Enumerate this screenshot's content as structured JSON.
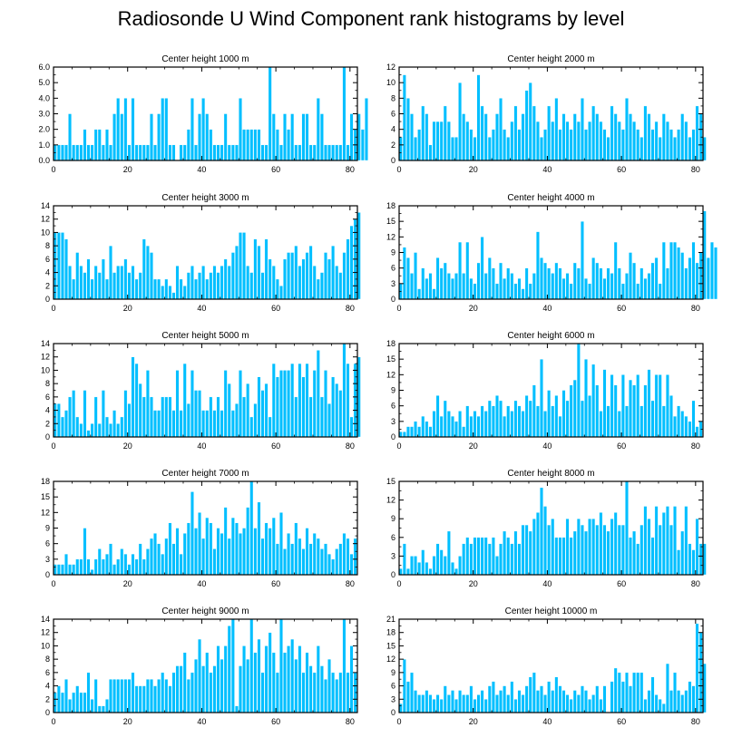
{
  "title": "Radiosonde U Wind Component rank histograms by level",
  "colors": {
    "bar": "#00bfff",
    "bar_edge": "#ffffff",
    "axis": "#000000"
  },
  "chart_data": [
    {
      "type": "bar",
      "title": "Center height 1000 m",
      "xlim": [
        0,
        82
      ],
      "ylim": [
        0,
        6
      ],
      "xticks": [
        0,
        20,
        40,
        60,
        80
      ],
      "xtick_labels": [
        "0",
        "20",
        "40",
        "60",
        "80"
      ],
      "yticks": [
        0,
        1,
        2,
        3,
        4,
        5,
        6
      ],
      "ytick_labels": [
        "0.0",
        "1.0",
        "2.0",
        "3.0",
        "4.0",
        "5.0",
        "6.0"
      ],
      "values": [
        1,
        1,
        1,
        1,
        3,
        1,
        1,
        1,
        2,
        1,
        1,
        2,
        2,
        1,
        2,
        1,
        3,
        4,
        3,
        4,
        1,
        4,
        1,
        1,
        1,
        1,
        3,
        1,
        3,
        4,
        4,
        1,
        1,
        0,
        1,
        1,
        2,
        4,
        1,
        3,
        4,
        3,
        2,
        1,
        1,
        1,
        3,
        1,
        1,
        1,
        4,
        2,
        2,
        2,
        2,
        2,
        1,
        1,
        6,
        3,
        2,
        1,
        3,
        2,
        3,
        1,
        1,
        3,
        3,
        1,
        1,
        4,
        3,
        1,
        1,
        1,
        1,
        1,
        6,
        1,
        3,
        2,
        3,
        2,
        4
      ]
    },
    {
      "type": "bar",
      "title": "Center height 2000 m",
      "xlim": [
        0,
        82
      ],
      "ylim": [
        0,
        12
      ],
      "xticks": [
        0,
        20,
        40,
        60,
        80
      ],
      "xtick_labels": [
        "0",
        "20",
        "40",
        "60",
        "80"
      ],
      "yticks": [
        0,
        2,
        4,
        6,
        8,
        10,
        12
      ],
      "ytick_labels": [
        "0",
        "2",
        "4",
        "6",
        "8",
        "10",
        "12"
      ],
      "values": [
        3,
        11,
        8,
        6,
        3,
        4,
        7,
        6,
        2,
        5,
        5,
        5,
        7,
        5,
        3,
        3,
        10,
        6,
        5,
        4,
        3,
        11,
        7,
        6,
        3,
        4,
        6,
        8,
        4,
        3,
        5,
        7,
        4,
        6,
        9,
        10,
        7,
        5,
        3,
        4,
        7,
        5,
        8,
        4,
        6,
        5,
        4,
        6,
        5,
        8,
        4,
        5,
        7,
        6,
        5,
        4,
        3,
        7,
        6,
        5,
        4,
        8,
        6,
        5,
        4,
        3,
        7,
        6,
        4,
        5,
        3,
        6,
        5,
        4,
        3,
        4,
        6,
        5,
        3,
        4,
        7,
        6,
        3
      ]
    },
    {
      "type": "bar",
      "title": "Center height 3000 m",
      "xlim": [
        0,
        82
      ],
      "ylim": [
        0,
        14
      ],
      "xticks": [
        0,
        20,
        40,
        60,
        80
      ],
      "xtick_labels": [
        "0",
        "20",
        "40",
        "60",
        "80"
      ],
      "yticks": [
        0,
        2,
        4,
        6,
        8,
        10,
        12,
        14
      ],
      "ytick_labels": [
        "0",
        "2",
        "4",
        "6",
        "8",
        "10",
        "12",
        "14"
      ],
      "values": [
        10,
        10,
        10,
        9,
        5,
        3,
        7,
        5,
        4,
        6,
        3,
        5,
        4,
        6,
        3,
        8,
        4,
        5,
        5,
        6,
        4,
        5,
        3,
        4,
        9,
        8,
        7,
        3,
        3,
        2,
        3,
        2,
        1,
        5,
        3,
        2,
        4,
        5,
        3,
        4,
        5,
        3,
        4,
        5,
        4,
        5,
        6,
        5,
        7,
        8,
        10,
        10,
        5,
        4,
        9,
        8,
        4,
        9,
        6,
        5,
        3,
        2,
        6,
        7,
        7,
        8,
        5,
        6,
        7,
        8,
        5,
        3,
        4,
        7,
        6,
        8,
        5,
        4,
        7,
        9,
        11,
        12,
        13
      ]
    },
    {
      "type": "bar",
      "title": "Center height 4000 m",
      "xlim": [
        0,
        82
      ],
      "ylim": [
        0,
        18
      ],
      "xticks": [
        0,
        20,
        40,
        60,
        80
      ],
      "xtick_labels": [
        "0",
        "20",
        "40",
        "60",
        "80"
      ],
      "yticks": [
        0,
        3,
        6,
        9,
        12,
        15,
        18
      ],
      "ytick_labels": [
        "0",
        "3",
        "6",
        "9",
        "12",
        "15",
        "18"
      ],
      "values": [
        3,
        10,
        8,
        5,
        9,
        2,
        6,
        4,
        5,
        2,
        8,
        6,
        7,
        5,
        4,
        5,
        11,
        5,
        11,
        4,
        3,
        7,
        12,
        5,
        8,
        6,
        3,
        7,
        4,
        6,
        5,
        3,
        4,
        2,
        6,
        3,
        5,
        13,
        8,
        7,
        6,
        5,
        7,
        6,
        4,
        5,
        3,
        7,
        6,
        15,
        4,
        3,
        8,
        7,
        6,
        4,
        6,
        5,
        11,
        6,
        3,
        5,
        9,
        7,
        3,
        6,
        4,
        5,
        7,
        8,
        3,
        11,
        6,
        11,
        11,
        10,
        9,
        6,
        8,
        11,
        7,
        9,
        17,
        8,
        11,
        10
      ]
    },
    {
      "type": "bar",
      "title": "Center height 5000 m",
      "xlim": [
        0,
        82
      ],
      "ylim": [
        0,
        14
      ],
      "xticks": [
        0,
        20,
        40,
        60,
        80
      ],
      "xtick_labels": [
        "0",
        "20",
        "40",
        "60",
        "80"
      ],
      "yticks": [
        0,
        2,
        4,
        6,
        8,
        10,
        12,
        14
      ],
      "ytick_labels": [
        "0",
        "2",
        "4",
        "6",
        "8",
        "10",
        "12",
        "14"
      ],
      "values": [
        5,
        5,
        3,
        4,
        6,
        7,
        3,
        2,
        7,
        1,
        2,
        6,
        2,
        7,
        3,
        2,
        4,
        2,
        3,
        7,
        5,
        12,
        11,
        8,
        6,
        10,
        6,
        4,
        4,
        6,
        6,
        6,
        4,
        10,
        4,
        11,
        5,
        10,
        7,
        7,
        4,
        4,
        6,
        4,
        6,
        4,
        10,
        8,
        4,
        5,
        10,
        6,
        8,
        3,
        5,
        9,
        7,
        8,
        3,
        11,
        9,
        10,
        10,
        10,
        11,
        6,
        11,
        9,
        11,
        6,
        10,
        13,
        6,
        10,
        5,
        9,
        8,
        7,
        14,
        11,
        3,
        11,
        12
      ]
    },
    {
      "type": "bar",
      "title": "Center height 6000 m",
      "xlim": [
        0,
        82
      ],
      "ylim": [
        0,
        18
      ],
      "xticks": [
        0,
        20,
        40,
        60,
        80
      ],
      "xtick_labels": [
        "0",
        "20",
        "40",
        "60",
        "80"
      ],
      "yticks": [
        0,
        3,
        6,
        9,
        12,
        15,
        18
      ],
      "ytick_labels": [
        "0",
        "3",
        "6",
        "9",
        "12",
        "15",
        "18"
      ],
      "values": [
        1,
        1,
        2,
        2,
        3,
        2,
        4,
        3,
        2,
        5,
        8,
        4,
        7,
        5,
        4,
        3,
        5,
        2,
        6,
        4,
        5,
        4,
        6,
        5,
        7,
        6,
        8,
        7,
        4,
        6,
        5,
        7,
        6,
        5,
        8,
        7,
        10,
        6,
        15,
        5,
        9,
        6,
        8,
        4,
        9,
        7,
        10,
        11,
        18,
        7,
        15,
        8,
        14,
        10,
        5,
        13,
        6,
        12,
        10,
        5,
        12,
        6,
        11,
        10,
        12,
        6,
        10,
        13,
        7,
        12,
        12,
        6,
        12,
        8,
        4,
        6,
        5,
        4,
        3,
        7,
        2,
        3
      ]
    },
    {
      "type": "bar",
      "title": "Center height 7000 m",
      "xlim": [
        0,
        82
      ],
      "ylim": [
        0,
        18
      ],
      "xticks": [
        0,
        20,
        40,
        60,
        80
      ],
      "xtick_labels": [
        "0",
        "20",
        "40",
        "60",
        "80"
      ],
      "yticks": [
        0,
        3,
        6,
        9,
        12,
        15,
        18
      ],
      "ytick_labels": [
        "0",
        "3",
        "6",
        "9",
        "12",
        "15",
        "18"
      ],
      "values": [
        2,
        2,
        2,
        4,
        2,
        2,
        3,
        3,
        9,
        3,
        1,
        3,
        5,
        3,
        4,
        6,
        2,
        3,
        5,
        4,
        2,
        4,
        3,
        6,
        3,
        5,
        7,
        8,
        6,
        4,
        7,
        10,
        6,
        9,
        4,
        8,
        10,
        16,
        9,
        12,
        7,
        11,
        10,
        5,
        9,
        8,
        13,
        7,
        11,
        10,
        8,
        9,
        13,
        18,
        9,
        14,
        7,
        10,
        9,
        11,
        6,
        12,
        5,
        8,
        6,
        10,
        7,
        5,
        9,
        6,
        8,
        7,
        5,
        6,
        4,
        3,
        5,
        6,
        8,
        7,
        4,
        7
      ]
    },
    {
      "type": "bar",
      "title": "Center height 8000 m",
      "xlim": [
        0,
        82
      ],
      "ylim": [
        0,
        15
      ],
      "xticks": [
        0,
        20,
        40,
        60,
        80
      ],
      "xtick_labels": [
        "0",
        "20",
        "40",
        "60",
        "80"
      ],
      "yticks": [
        0,
        3,
        6,
        9,
        12,
        15
      ],
      "ytick_labels": [
        "0",
        "3",
        "6",
        "9",
        "12",
        "15"
      ],
      "values": [
        1,
        5,
        1,
        3,
        3,
        2,
        4,
        2,
        1,
        3,
        5,
        4,
        3,
        7,
        2,
        1,
        3,
        5,
        6,
        5,
        6,
        6,
        6,
        6,
        5,
        6,
        3,
        5,
        7,
        6,
        5,
        7,
        5,
        8,
        8,
        7,
        9,
        10,
        14,
        11,
        8,
        9,
        6,
        6,
        6,
        9,
        6,
        7,
        9,
        8,
        7,
        9,
        9,
        8,
        10,
        8,
        7,
        9,
        10,
        8,
        8,
        15,
        6,
        7,
        5,
        8,
        11,
        9,
        6,
        11,
        8,
        10,
        11,
        8,
        11,
        4,
        7,
        11,
        5,
        4,
        9,
        5,
        5
      ]
    },
    {
      "type": "bar",
      "title": "Center height 9000 m",
      "xlim": [
        0,
        82
      ],
      "ylim": [
        0,
        14
      ],
      "xticks": [
        0,
        20,
        40,
        60,
        80
      ],
      "xtick_labels": [
        "0",
        "20",
        "40",
        "60",
        "80"
      ],
      "yticks": [
        0,
        2,
        4,
        6,
        8,
        10,
        12,
        14
      ],
      "ytick_labels": [
        "0",
        "2",
        "4",
        "6",
        "8",
        "10",
        "12",
        "14"
      ],
      "values": [
        3,
        4,
        3,
        5,
        2,
        3,
        4,
        3,
        3,
        6,
        2,
        5,
        1,
        1,
        2,
        5,
        5,
        5,
        5,
        5,
        5,
        6,
        4,
        4,
        4,
        5,
        5,
        4,
        5,
        6,
        5,
        4,
        6,
        7,
        7,
        9,
        5,
        6,
        8,
        11,
        7,
        9,
        6,
        7,
        10,
        8,
        10,
        13,
        14,
        1,
        7,
        10,
        8,
        14,
        9,
        11,
        6,
        10,
        12,
        9,
        6,
        14,
        9,
        10,
        11,
        8,
        10,
        6,
        9,
        7,
        6,
        10,
        7,
        5,
        8,
        6,
        5,
        6,
        14,
        6,
        10,
        6
      ]
    },
    {
      "type": "bar",
      "title": "Center height 10000 m",
      "xlim": [
        0,
        82
      ],
      "ylim": [
        0,
        21
      ],
      "xticks": [
        0,
        20,
        40,
        60,
        80
      ],
      "xtick_labels": [
        "0",
        "20",
        "40",
        "60",
        "80"
      ],
      "yticks": [
        0,
        3,
        6,
        9,
        12,
        15,
        18,
        21
      ],
      "ytick_labels": [
        "0",
        "3",
        "6",
        "9",
        "12",
        "15",
        "18",
        "21"
      ],
      "values": [
        2,
        12,
        7,
        9,
        5,
        4,
        4,
        5,
        4,
        3,
        4,
        3,
        6,
        4,
        5,
        3,
        5,
        4,
        4,
        6,
        3,
        4,
        5,
        3,
        6,
        7,
        4,
        5,
        6,
        4,
        7,
        3,
        5,
        4,
        6,
        8,
        9,
        5,
        6,
        4,
        7,
        5,
        8,
        6,
        5,
        4,
        3,
        5,
        4,
        6,
        5,
        3,
        4,
        6,
        3,
        6,
        0,
        7,
        10,
        9,
        7,
        9,
        6,
        9,
        9,
        9,
        3,
        5,
        8,
        4,
        3,
        2,
        11,
        5,
        9,
        5,
        4,
        5,
        7,
        6,
        20,
        18,
        11
      ]
    }
  ]
}
